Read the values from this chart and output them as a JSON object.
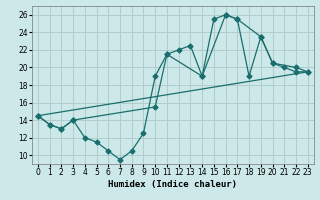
{
  "xlabel": "Humidex (Indice chaleur)",
  "bg_color": "#cce8e8",
  "grid_color": "#b0cccc",
  "line_color": "#1a6e6e",
  "xlim": [
    -0.5,
    23.5
  ],
  "ylim": [
    9.0,
    27.0
  ],
  "yticks": [
    10,
    12,
    14,
    16,
    18,
    20,
    22,
    24,
    26
  ],
  "xticks": [
    0,
    1,
    2,
    3,
    4,
    5,
    6,
    7,
    8,
    9,
    10,
    11,
    12,
    13,
    14,
    15,
    16,
    17,
    18,
    19,
    20,
    21,
    22,
    23
  ],
  "line1_x": [
    0,
    1,
    2,
    3,
    4,
    5,
    6,
    7,
    8,
    9,
    10,
    11,
    12,
    13,
    14,
    15,
    16,
    17,
    18,
    19,
    20,
    21,
    22,
    23
  ],
  "line1_y": [
    14.5,
    13.5,
    13.0,
    14.0,
    12.0,
    11.5,
    10.5,
    9.5,
    10.5,
    12.5,
    19.0,
    21.5,
    22.0,
    22.5,
    19.0,
    25.5,
    26.0,
    25.5,
    19.0,
    23.5,
    20.5,
    20.0,
    19.5,
    19.5
  ],
  "line2_x": [
    0,
    23
  ],
  "line2_y": [
    14.5,
    19.5
  ],
  "line3_x": [
    0,
    1,
    2,
    3,
    10,
    11,
    14,
    16,
    17,
    19,
    20,
    22,
    23
  ],
  "line3_y": [
    14.5,
    13.5,
    13.0,
    14.0,
    15.5,
    21.5,
    19.0,
    26.0,
    25.5,
    23.5,
    20.5,
    20.0,
    19.5
  ]
}
